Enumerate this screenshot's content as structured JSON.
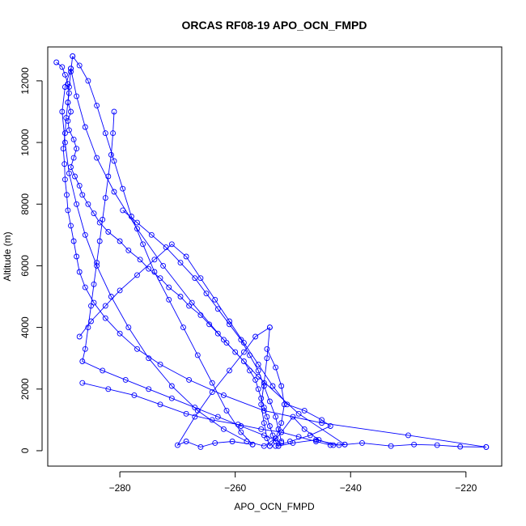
{
  "chart_data": {
    "type": "line",
    "title": "ORCAS RF08-19 APO_OCN_FMPD",
    "xlabel": "APO_OCN_FMPD",
    "ylabel": "Altitude (m)",
    "xlim": [
      -292.5,
      -213.8
    ],
    "ylim": [
      -500,
      13100
    ],
    "xticks": [
      -280,
      -260,
      -240,
      -220
    ],
    "yticks": [
      0,
      2000,
      4000,
      6000,
      8000,
      10000,
      12000
    ],
    "color": "#0000ff",
    "markers": "open-circle",
    "series": [
      {
        "points": [
          [
            -291,
            12600
          ],
          [
            -290,
            12450
          ],
          [
            -289.5,
            12200
          ],
          [
            -289,
            11900
          ],
          [
            -288.8,
            11600
          ],
          [
            -289,
            11300
          ],
          [
            -288.5,
            11000
          ],
          [
            -289,
            10700
          ],
          [
            -288.8,
            10400
          ],
          [
            -288,
            10100
          ],
          [
            -287.5,
            9800
          ],
          [
            -288,
            9500
          ],
          [
            -288.5,
            9200
          ],
          [
            -287.8,
            8900
          ],
          [
            -287,
            8600
          ],
          [
            -286.5,
            8300
          ],
          [
            -285.5,
            8000
          ],
          [
            -284.5,
            7700
          ],
          [
            -283.5,
            7400
          ],
          [
            -282,
            7100
          ],
          [
            -280,
            6800
          ],
          [
            -278.5,
            6500
          ],
          [
            -276.5,
            6200
          ],
          [
            -275,
            5900
          ],
          [
            -273,
            5600
          ],
          [
            -271.5,
            5300
          ],
          [
            -269.5,
            5000
          ],
          [
            -268,
            4700
          ],
          [
            -266,
            4400
          ],
          [
            -264.5,
            4100
          ],
          [
            -263,
            3800
          ],
          [
            -261.5,
            3500
          ],
          [
            -260,
            3200
          ],
          [
            -258.5,
            2900
          ],
          [
            -257.5,
            2600
          ],
          [
            -256.5,
            2300
          ],
          [
            -256,
            2000
          ],
          [
            -255.5,
            1700
          ],
          [
            -255,
            1400
          ],
          [
            -254.5,
            1100
          ],
          [
            -254,
            800
          ],
          [
            -253.5,
            500
          ],
          [
            -253,
            300
          ],
          [
            -252.5,
            150
          ]
        ]
      },
      {
        "points": [
          [
            -252.5,
            150
          ],
          [
            -250,
            250
          ],
          [
            -246,
            350
          ],
          [
            -242,
            180
          ],
          [
            -238,
            250
          ],
          [
            -233,
            150
          ],
          [
            -229,
            200
          ],
          [
            -225,
            180
          ],
          [
            -221,
            130
          ],
          [
            -216.5,
            120
          ]
        ]
      },
      {
        "points": [
          [
            -216.5,
            120
          ],
          [
            -230,
            500
          ],
          [
            -245,
            900
          ],
          [
            -255,
            1300
          ],
          [
            -262,
            1800
          ],
          [
            -268,
            2300
          ],
          [
            -273,
            2800
          ],
          [
            -277,
            3300
          ],
          [
            -280,
            3800
          ],
          [
            -282.5,
            4300
          ],
          [
            -284.5,
            4800
          ],
          [
            -286,
            5300
          ],
          [
            -287,
            5800
          ],
          [
            -287.5,
            6300
          ],
          [
            -288,
            6800
          ],
          [
            -288.5,
            7300
          ],
          [
            -289,
            7800
          ],
          [
            -289.2,
            8300
          ],
          [
            -289.5,
            8800
          ],
          [
            -289.6,
            9300
          ],
          [
            -289.8,
            9800
          ],
          [
            -289.5,
            10300
          ],
          [
            -289.3,
            10800
          ],
          [
            -289,
            11300
          ],
          [
            -288.8,
            11800
          ],
          [
            -288.5,
            12300
          ],
          [
            -288.2,
            12800
          ]
        ]
      },
      {
        "points": [
          [
            -288.2,
            12800
          ],
          [
            -287,
            12500
          ],
          [
            -285.5,
            12000
          ],
          [
            -284,
            11200
          ],
          [
            -282.5,
            10300
          ],
          [
            -281,
            9400
          ],
          [
            -279.5,
            8500
          ],
          [
            -278,
            7600
          ],
          [
            -276,
            6700
          ],
          [
            -274,
            5800
          ],
          [
            -271.5,
            4900
          ],
          [
            -269,
            4000
          ],
          [
            -266.5,
            3100
          ],
          [
            -264,
            2200
          ],
          [
            -261.5,
            1300
          ],
          [
            -259,
            600
          ],
          [
            -257,
            200
          ]
        ]
      },
      {
        "points": [
          [
            -257,
            200
          ],
          [
            -260.5,
            300
          ],
          [
            -263.5,
            250
          ],
          [
            -266,
            120
          ],
          [
            -268.5,
            300
          ],
          [
            -270,
            180
          ],
          [
            -267,
            1100
          ],
          [
            -264,
            1900
          ],
          [
            -261,
            2600
          ],
          [
            -258.5,
            3200
          ],
          [
            -256.5,
            3700
          ],
          [
            -254,
            4000
          ]
        ]
      },
      {
        "points": [
          [
            -254,
            4000
          ],
          [
            -254.5,
            3000
          ],
          [
            -255,
            2200
          ],
          [
            -255.5,
            1500
          ],
          [
            -255,
            900
          ],
          [
            -254.5,
            400
          ],
          [
            -254,
            150
          ]
        ]
      },
      {
        "points": [
          [
            -254,
            150
          ],
          [
            -252,
            600
          ],
          [
            -250,
            1100
          ],
          [
            -248,
            700
          ],
          [
            -245.5,
            350
          ],
          [
            -243,
            180
          ],
          [
            -241,
            200
          ]
        ]
      },
      {
        "points": [
          [
            -241,
            200
          ],
          [
            -249,
            1200
          ],
          [
            -256,
            2400
          ],
          [
            -262,
            3600
          ],
          [
            -267.5,
            4800
          ],
          [
            -272.5,
            6000
          ],
          [
            -277,
            7200
          ],
          [
            -281,
            8400
          ],
          [
            -284,
            9500
          ],
          [
            -286,
            10500
          ],
          [
            -287.5,
            11500
          ],
          [
            -288.5,
            12400
          ]
        ]
      },
      {
        "points": [
          [
            -288.5,
            12400
          ],
          [
            -289.5,
            11800
          ],
          [
            -290,
            11000
          ],
          [
            -289.5,
            10000
          ],
          [
            -288.8,
            9000
          ],
          [
            -287.5,
            8000
          ],
          [
            -286,
            7000
          ],
          [
            -284,
            6000
          ],
          [
            -281.5,
            5000
          ],
          [
            -278.5,
            4000
          ],
          [
            -275,
            3000
          ],
          [
            -271,
            2100
          ],
          [
            -266.5,
            1300
          ],
          [
            -262,
            700
          ],
          [
            -258,
            300
          ],
          [
            -255,
            150
          ],
          [
            -253,
            400
          ],
          [
            -252,
            900
          ],
          [
            -251.5,
            1500
          ],
          [
            -252,
            2100
          ],
          [
            -253,
            2700
          ],
          [
            -254.5,
            3300
          ]
        ]
      },
      {
        "points": [
          [
            -281,
            11000
          ],
          [
            -281.2,
            10300
          ],
          [
            -281.5,
            9600
          ],
          [
            -282,
            8900
          ],
          [
            -282.5,
            8200
          ],
          [
            -283,
            7500
          ],
          [
            -283.5,
            6800
          ],
          [
            -284,
            6100
          ],
          [
            -284.5,
            5400
          ],
          [
            -285,
            4700
          ],
          [
            -285.5,
            4000
          ],
          [
            -286,
            3300
          ],
          [
            -286.5,
            2900
          ],
          [
            -283,
            2600
          ],
          [
            -279,
            2300
          ],
          [
            -275,
            2000
          ],
          [
            -271,
            1700
          ],
          [
            -267,
            1400
          ],
          [
            -263,
            1100
          ],
          [
            -259,
            800
          ],
          [
            -255,
            500
          ],
          [
            -252,
            250
          ]
        ]
      },
      {
        "points": [
          [
            -287,
            3700
          ],
          [
            -285,
            4200
          ],
          [
            -282.5,
            4700
          ],
          [
            -280,
            5200
          ],
          [
            -277,
            5700
          ],
          [
            -274,
            6200
          ],
          [
            -271,
            6700
          ],
          [
            -268.5,
            6300
          ],
          [
            -266,
            5600
          ],
          [
            -263.5,
            4900
          ],
          [
            -261,
            4200
          ],
          [
            -258.5,
            3500
          ],
          [
            -256,
            2800
          ],
          [
            -253.5,
            2100
          ],
          [
            -251,
            1500
          ],
          [
            -248,
            1300
          ],
          [
            -245,
            1000
          ],
          [
            -243.5,
            800
          ],
          [
            -247,
            500
          ],
          [
            -250.5,
            300
          ],
          [
            -253,
            150
          ]
        ]
      },
      {
        "points": [
          [
            -286.5,
            2200
          ],
          [
            -282,
            2000
          ],
          [
            -277.5,
            1800
          ],
          [
            -273,
            1500
          ],
          [
            -268.5,
            1200
          ],
          [
            -264,
            1000
          ],
          [
            -259.5,
            850
          ],
          [
            -255.5,
            700
          ],
          [
            -252,
            600
          ],
          [
            -249,
            450
          ],
          [
            -246,
            300
          ],
          [
            -243.5,
            180
          ]
        ]
      },
      {
        "points": [
          [
            -279.5,
            7800
          ],
          [
            -277,
            7400
          ],
          [
            -274.5,
            7000
          ],
          [
            -272,
            6600
          ],
          [
            -269.5,
            6100
          ],
          [
            -267,
            5600
          ],
          [
            -265,
            5100
          ],
          [
            -263,
            4600
          ],
          [
            -261,
            4100
          ],
          [
            -259,
            3600
          ],
          [
            -257.5,
            3100
          ],
          [
            -256,
            2600
          ],
          [
            -255,
            2100
          ],
          [
            -254,
            1600
          ],
          [
            -253,
            1100
          ],
          [
            -252.5,
            700
          ],
          [
            -252,
            300
          ]
        ]
      }
    ]
  }
}
